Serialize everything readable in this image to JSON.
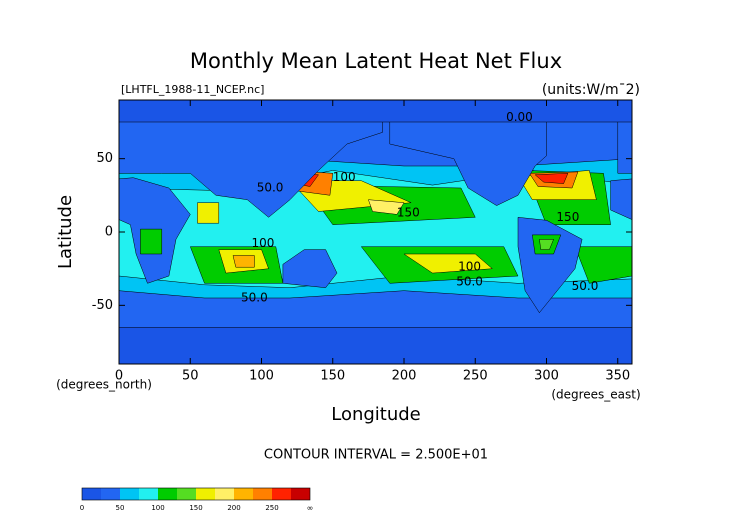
{
  "chart_data": {
    "type": "contour",
    "title": "Monthly Mean Latent Heat Net Flux",
    "subtitle": "[LHTFL_1988-11_NCEP.nc]",
    "units": "(units:W/m¯2)",
    "xlabel": "Longitude",
    "ylabel": "Latitude",
    "x_unit_label": "(degrees_east)",
    "y_unit_label": "(degrees_north)",
    "footer": "CONTOUR INTERVAL = 2.500E+01",
    "xlim": [
      0,
      360
    ],
    "ylim": [
      -90,
      90
    ],
    "xticks": [
      0,
      50,
      100,
      150,
      200,
      250,
      300,
      350
    ],
    "yticks": [
      -50,
      0,
      50
    ],
    "levels": [
      0,
      25,
      50,
      75,
      100,
      125,
      150,
      175,
      200,
      225,
      250,
      275
    ],
    "colors": [
      "#1a55e6",
      "#2266f2",
      "#00c4f4",
      "#22f0f0",
      "#00cc00",
      "#55dd22",
      "#f0f000",
      "#fff066",
      "#ffb400",
      "#ff8000",
      "#ff2200",
      "#c80000"
    ],
    "colorbar_ticks": [
      0,
      50,
      100,
      150,
      200,
      250
    ],
    "colorbar_end_label": "∞",
    "contour_labels": [
      {
        "text": "50.0",
        "lon": 106,
        "lat": 30
      },
      {
        "text": "100",
        "lon": 158,
        "lat": 37
      },
      {
        "text": "0.00",
        "lon": 281,
        "lat": 78
      },
      {
        "text": "150",
        "lon": 203,
        "lat": 13
      },
      {
        "text": "150",
        "lon": 315,
        "lat": 10
      },
      {
        "text": "100",
        "lon": 101,
        "lat": -8
      },
      {
        "text": "100",
        "lon": 246,
        "lat": -24
      },
      {
        "text": "50.0",
        "lon": 246,
        "lat": -34
      },
      {
        "text": "50.0",
        "lon": 95,
        "lat": -45
      },
      {
        "text": "50.0",
        "lon": 327,
        "lat": -37
      }
    ]
  }
}
